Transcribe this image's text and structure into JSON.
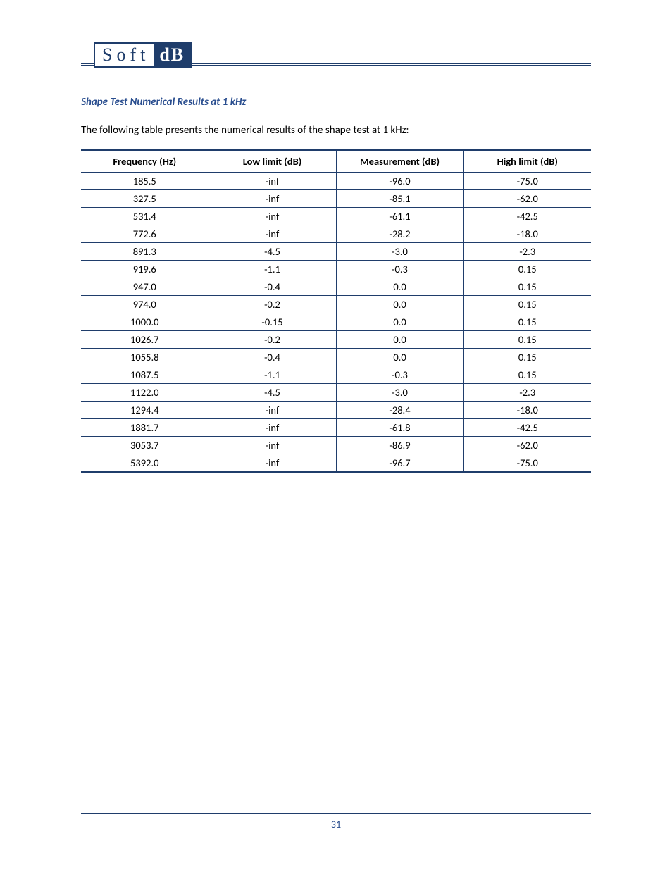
{
  "logo": {
    "left": "Soft",
    "right": "dB"
  },
  "section_title": "Shape Test Numerical Results at 1 kHz",
  "intro_text": "The following table presents the numerical results of the shape test at 1 kHz:",
  "page_number": "31",
  "colors": {
    "brand": "#1f3d6b",
    "heading": "#2a4e8f",
    "text": "#000000",
    "background": "#ffffff"
  },
  "table": {
    "columns": [
      "Frequency (Hz)",
      "Low limit (dB)",
      "Measurement (dB)",
      "High limit (dB)"
    ],
    "rows": [
      [
        "185.5",
        "-inf",
        "-96.0",
        "-75.0"
      ],
      [
        "327.5",
        "-inf",
        "-85.1",
        "-62.0"
      ],
      [
        "531.4",
        "-inf",
        "-61.1",
        "-42.5"
      ],
      [
        "772.6",
        "-inf",
        "-28.2",
        "-18.0"
      ],
      [
        "891.3",
        "-4.5",
        "-3.0",
        "-2.3"
      ],
      [
        "919.6",
        "-1.1",
        "-0.3",
        "0.15"
      ],
      [
        "947.0",
        "-0.4",
        "0.0",
        "0.15"
      ],
      [
        "974.0",
        "-0.2",
        "0.0",
        "0.15"
      ],
      [
        "1000.0",
        "-0.15",
        "0.0",
        "0.15"
      ],
      [
        "1026.7",
        "-0.2",
        "0.0",
        "0.15"
      ],
      [
        "1055.8",
        "-0.4",
        "0.0",
        "0.15"
      ],
      [
        "1087.5",
        "-1.1",
        "-0.3",
        "0.15"
      ],
      [
        "1122.0",
        "-4.5",
        "-3.0",
        "-2.3"
      ],
      [
        "1294.4",
        "-inf",
        "-28.4",
        "-18.0"
      ],
      [
        "1881.7",
        "-inf",
        "-61.8",
        "-42.5"
      ],
      [
        "3053.7",
        "-inf",
        "-86.9",
        "-62.0"
      ],
      [
        "5392.0",
        "-inf",
        "-96.7",
        "-75.0"
      ]
    ]
  }
}
